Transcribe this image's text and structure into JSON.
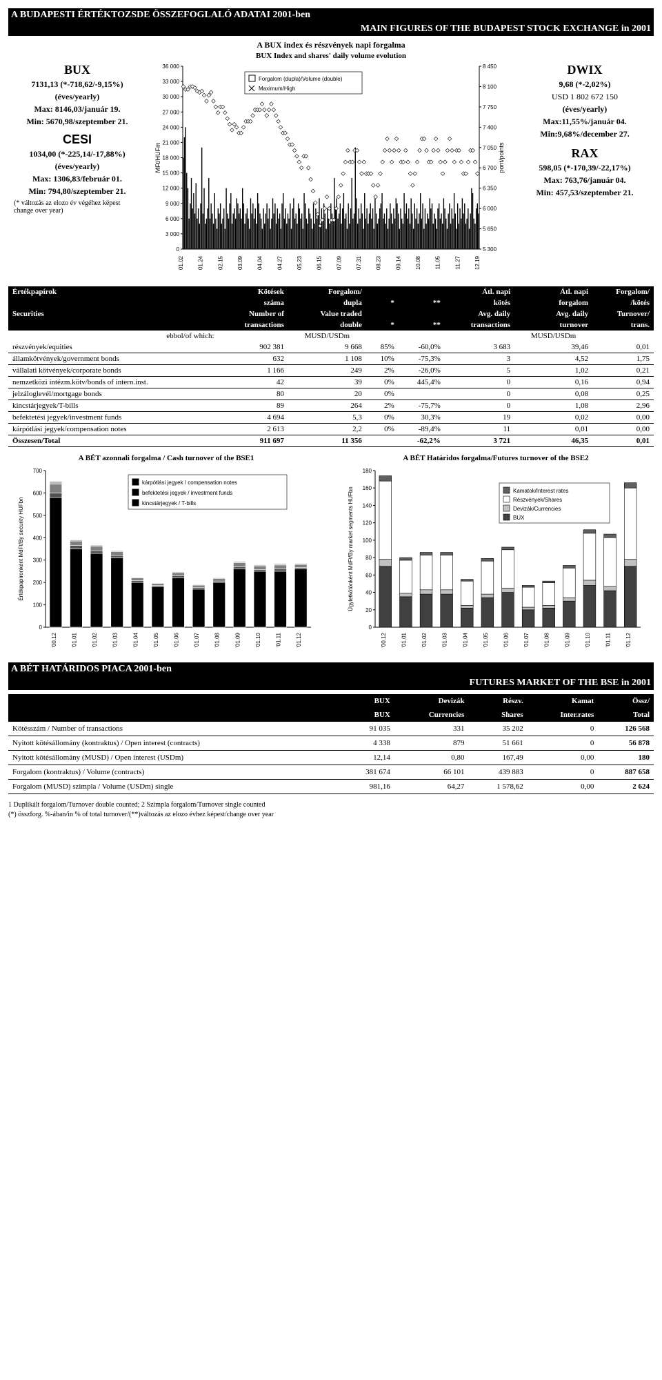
{
  "banners": {
    "top_hu": "A BUDAPESTI ÉRTÉKTOZSDE ÖSSZEFOGLALÓ ADATAI 2001-ben",
    "top_en": "MAIN FIGURES OF  THE BUDAPEST STOCK EXCHANGE in 2001",
    "futures_hu": "A BÉT HATÁRIDOS PIACA 2001-ben",
    "futures_en": "FUTURES MARKET OF THE BSE in 2001"
  },
  "chart_header": {
    "hu": "A BUX index és részvények napi forgalma",
    "en": "BUX Index and shares' daily volume evolution"
  },
  "indices": {
    "bux": {
      "name": "BUX",
      "val": "7131,13 (*-718,62/-9,15%)",
      "yearly": "(éves/yearly)",
      "max": "Max: 8146,03/január 19.",
      "min": "Min: 5670,98/szeptember 21."
    },
    "cesi": {
      "name": "CESI",
      "val": "1034,00 (*-225,14/-17,88%)",
      "yearly": "(éves/yearly)",
      "max": "Max: 1306,83/február 01.",
      "min": "Min: 794,80/szeptember 21."
    },
    "dwix": {
      "name": "DWIX",
      "val": "9,68 (*-2,02%)",
      "usd": "USD 1 802 672 150",
      "yearly": "(éves/yearly)",
      "max": "Max:11,55%/január 04.",
      "min": "Min:9,68%/december 27."
    },
    "rax": {
      "name": "RAX",
      "val": "598,05 (*-170,39/-22,17%)",
      "max": "Max: 763,76/január 04.",
      "min": "Min: 457,53/szeptember 21."
    },
    "change_note": "(* változás az elozo év végéhez képest\nchange over year)"
  },
  "main_chart": {
    "type": "bar+line",
    "y1_label": "MFt/HUFm",
    "y2_label": "pont/points",
    "y1_ticks": [
      0,
      3000,
      6000,
      9000,
      12000,
      15000,
      18000,
      21000,
      24000,
      27000,
      30000,
      33000,
      36000
    ],
    "y2_ticks": [
      5300,
      5650,
      6000,
      6350,
      6700,
      7050,
      7400,
      7750,
      8100,
      8450
    ],
    "x_labels": [
      "01.02",
      "01.24",
      "02.15",
      "03.09",
      "04.04",
      "04.27",
      "05.23",
      "06.15",
      "07.09",
      "07.31",
      "08.23",
      "09.14",
      "10.08",
      "11.05",
      "11.27",
      "12.19"
    ],
    "legend": {
      "l1": "Forgalom (dupla)/Volume (double)",
      "l2": "Maximum/High"
    },
    "volume_values": [
      18000,
      22000,
      24000,
      15000,
      12000,
      6000,
      9000,
      14000,
      8000,
      11000,
      7000,
      13000,
      6000,
      8000,
      5000,
      9000,
      20000,
      7000,
      12000,
      5000,
      6000,
      8000,
      14000,
      6000,
      9000,
      7000,
      5000,
      11000,
      6000,
      4000,
      8000,
      7000,
      9000,
      5000,
      6000,
      8000,
      4000,
      12000,
      7000,
      6000,
      9000,
      11000,
      5000,
      7000,
      8000,
      6000,
      10000,
      9000,
      7000,
      8000,
      6000,
      12000,
      9000,
      5000,
      7000,
      8000,
      6000,
      4000,
      10000,
      7000,
      9000,
      6000,
      8000,
      5000,
      11000,
      9000,
      7000,
      6000,
      4000,
      8000,
      5000,
      7000,
      9000,
      6000,
      8000,
      4000,
      6000,
      10000,
      7000,
      9000,
      5000,
      8000,
      6000,
      7000,
      4000,
      9000,
      11000,
      6000,
      8000,
      5000,
      7000,
      6000,
      9000,
      4000,
      8000,
      10000,
      6000,
      7000,
      5000,
      9000,
      8000,
      6000,
      7000,
      4000,
      11000,
      9000,
      6000,
      5000,
      8000,
      7000,
      6000,
      4000,
      9000,
      5000,
      8000,
      6000,
      7000,
      10000,
      5000,
      8000,
      6000,
      9000,
      7000,
      4000,
      8000,
      6000,
      5000,
      9000,
      7000,
      6000,
      14000,
      8000,
      10000,
      6000,
      7000,
      9000,
      5000,
      8000,
      11000,
      6000,
      7000,
      4000,
      9000,
      5000,
      8000,
      14000,
      6000,
      7000,
      20000,
      10000,
      5000,
      8000,
      6000,
      9000,
      7000,
      4000,
      11000,
      6000,
      8000,
      5000,
      7000,
      9000,
      6000,
      8000,
      4000,
      10000,
      7000,
      5000,
      6000,
      8000,
      9000,
      11000,
      6000,
      7000,
      5000,
      8000,
      4000,
      6000,
      9000,
      7000,
      5000,
      8000,
      6000,
      10000,
      9000,
      7000,
      4000,
      8000,
      6000,
      5000,
      11000,
      7000,
      9000,
      6000,
      8000,
      5000,
      10000,
      7000,
      4000,
      9000,
      6000,
      8000,
      5000,
      7000,
      11000,
      6000,
      9000,
      4000,
      8000,
      5000,
      7000,
      6000,
      10000,
      8000,
      9000,
      5000,
      7000,
      6000,
      4000,
      8000,
      9000,
      6000,
      7000,
      5000,
      10000,
      8000,
      6000,
      4000,
      7000,
      9000,
      5000,
      8000,
      6000,
      11000,
      7000,
      4000,
      9000,
      5000,
      8000,
      6000,
      10000,
      7000,
      9000,
      5000,
      6000,
      8000,
      4000,
      7000,
      12000,
      11000,
      6000,
      5000,
      8000,
      9000,
      7000
    ],
    "index_values": [
      8100,
      8150,
      8050,
      8100,
      8050,
      8000,
      8100,
      8150,
      8100,
      8050,
      8080,
      8100,
      8020,
      8050,
      8000,
      7980,
      8020,
      8000,
      7950,
      7900,
      7850,
      7900,
      7950,
      7980,
      8000,
      7900,
      7850,
      7800,
      7750,
      7700,
      7650,
      7700,
      7750,
      7800,
      7750,
      7700,
      7650,
      7600,
      7550,
      7500,
      7450,
      7400,
      7350,
      7400,
      7450,
      7500,
      7400,
      7350,
      7300,
      7250,
      7300,
      7350,
      7400,
      7450,
      7500,
      7550,
      7500,
      7450,
      7500,
      7550,
      7600,
      7650,
      7700,
      7750,
      7700,
      7650,
      7700,
      7750,
      7800,
      7750,
      7700,
      7650,
      7600,
      7650,
      7700,
      7750,
      7800,
      7750,
      7700,
      7650,
      7600,
      7550,
      7500,
      7450,
      7400,
      7350,
      7300,
      7350,
      7300,
      7250,
      7200,
      7150,
      7100,
      7150,
      7100,
      7050,
      7000,
      6950,
      6900,
      6850,
      6800,
      6750,
      6700,
      6800,
      6900,
      7000,
      6900,
      6800,
      6700,
      6600,
      6500,
      6400,
      6300,
      6200,
      6100,
      6000,
      5900,
      5800,
      5700,
      5650,
      5800,
      5900,
      6000,
      6100,
      6200,
      6100,
      6000,
      5900,
      5800,
      5700,
      5800,
      5900,
      6000,
      6100,
      6200,
      6300,
      6400,
      6500,
      6600,
      6700,
      6800,
      6900,
      7000,
      6900,
      6800,
      6700,
      6800,
      6900,
      7000,
      7100,
      7000,
      6900,
      6800,
      6700,
      6600,
      6700,
      6800,
      6700,
      6600,
      6500,
      6600,
      6700,
      6600,
      6500,
      6400,
      6300,
      6200,
      6300,
      6400,
      6500,
      6600,
      6700,
      6800,
      6900,
      7000,
      7100,
      7200,
      7100,
      7000,
      6900,
      6800,
      6900,
      7000,
      7100,
      7200,
      7100,
      7000,
      6900,
      6800,
      6700,
      6800,
      6900,
      7000,
      6900,
      6800,
      6700,
      6600,
      6500,
      6400,
      6500,
      6600,
      6700,
      6800,
      6900,
      7000,
      7100,
      7200,
      7300,
      7200,
      7100,
      7000,
      6900,
      6800,
      6700,
      6800,
      6900,
      7000,
      7100,
      7200,
      7100,
      7000,
      6900,
      6800,
      6700,
      6600,
      6700,
      6800,
      6900,
      7000,
      7100,
      7200,
      7100,
      7000,
      6900,
      6800,
      6900,
      7000,
      7100,
      7000,
      6900,
      6800,
      6700,
      6600,
      6500,
      6600,
      6700,
      6800,
      6900,
      7000,
      7100,
      7000,
      6900,
      6800,
      6700,
      6600,
      6700
    ],
    "colors": {
      "bar": "#000000",
      "line": "#000000",
      "grid": "#888888",
      "bg": "#ffffff"
    }
  },
  "sec_table": {
    "hdr_hu": [
      "Értékpapírok",
      "Kötések",
      "Forgalom/",
      "",
      "",
      "Átl. napi",
      "Átl. napi",
      "Forgalom/"
    ],
    "hdr_hu2": [
      "",
      "száma",
      "dupla",
      "*",
      "**",
      "kötés",
      "forgalom",
      "/kötés"
    ],
    "hdr_en": [
      "Securities",
      "Number of",
      "Value traded",
      "",
      "",
      "Avg. daily",
      "Avg. daily",
      "Turnover/"
    ],
    "hdr_en2": [
      "",
      "transactions",
      "double",
      "*",
      "**",
      "transactions",
      "turnover",
      "trans."
    ],
    "unit_row": [
      "ebbol/of which:",
      "",
      "MUSD/USDm",
      "",
      "",
      "",
      "MUSD/USDm",
      ""
    ],
    "rows": [
      [
        "részvények/equities",
        "902 381",
        "9 668",
        "85%",
        "-60,0%",
        "3 683",
        "39,46",
        "0,01"
      ],
      [
        "államkötvények/government bonds",
        "632",
        "1 108",
        "10%",
        "-75,3%",
        "3",
        "4,52",
        "1,75"
      ],
      [
        "vállalati kötvények/corporate bonds",
        "1 166",
        "249",
        "2%",
        "-26,0%",
        "5",
        "1,02",
        "0,21"
      ],
      [
        "nemzetközi intézm.kötv/bonds of intern.inst.",
        "42",
        "39",
        "0%",
        "445,4%",
        "0",
        "0,16",
        "0,94"
      ],
      [
        "jelzáloglevél/mortgage bonds",
        "80",
        "20",
        "0%",
        "",
        "0",
        "0,08",
        "0,25"
      ],
      [
        "kincstárjegyek/T-bills",
        "89",
        "264",
        "2%",
        "-75,7%",
        "0",
        "1,08",
        "2,96"
      ],
      [
        "befektetési jegyek/investment funds",
        "4 694",
        "5,3",
        "0%",
        "30,3%",
        "19",
        "0,02",
        "0,00"
      ],
      [
        "kárpótlási jegyek/compensation notes",
        "2 613",
        "2,2",
        "0%",
        "-89,4%",
        "11",
        "0,01",
        "0,00"
      ]
    ],
    "total": [
      "Összesen/Total",
      "911 697",
      "11 356",
      "",
      "-62,2%",
      "3 721",
      "46,35",
      "0,01"
    ]
  },
  "cash_chart": {
    "title": "A BÉT azonnali forgalma / Cash turnover of the BSE1",
    "y_label": "Értékpapíronként MdFt/By security HUFbn",
    "y_ticks": [
      0,
      100,
      200,
      300,
      400,
      500,
      600,
      700
    ],
    "ymax": 700,
    "x_labels": [
      "'00.12",
      "'01.01",
      "'01.02",
      "'01.03",
      "'01.04",
      "'01.05",
      "'01.06",
      "'01.07",
      "'01.08",
      "'01.09",
      "'01.10",
      "'01.11",
      "'01.12"
    ],
    "legend": [
      "kárpótlási jegyek / compensation notes",
      "befektetési jegyek / investment funds",
      "kincstárjegyek / T-bills"
    ],
    "legend_colors": [
      "#000000",
      "#000000",
      "#000000"
    ],
    "legend_patterns": [
      "solid",
      "solid",
      "solid"
    ],
    "series": {
      "equities": [
        580,
        350,
        330,
        310,
        200,
        180,
        220,
        170,
        200,
        260,
        250,
        250,
        260
      ],
      "govbonds": [
        20,
        15,
        12,
        10,
        8,
        6,
        10,
        8,
        6,
        10,
        8,
        10,
        6
      ],
      "tbills": [
        40,
        20,
        20,
        18,
        12,
        10,
        14,
        10,
        12,
        18,
        16,
        18,
        14
      ],
      "corpbonds": [
        10,
        5,
        5,
        4,
        3,
        2,
        4,
        3,
        3,
        5,
        4,
        5,
        4
      ],
      "other": [
        5,
        3,
        2,
        2,
        2,
        1,
        2,
        2,
        2,
        3,
        3,
        3,
        3
      ]
    },
    "colors": {
      "equities": "#000000",
      "govbonds": "#505050",
      "tbills": "#808080",
      "corpbonds": "#b0b0b0",
      "other": "#e0e0e0",
      "grid": "#000000"
    }
  },
  "futures_chart": {
    "title": "A BÉT Határidos forgalma/Futures turnover of the BSE2",
    "y_label": "Ügyletkötönként MdFt/By market segments HUFbn",
    "y_ticks": [
      0,
      20,
      40,
      60,
      80,
      100,
      120,
      140,
      160,
      180
    ],
    "ymax": 180,
    "x_labels": [
      "'00.12",
      "'01.01",
      "'01.02",
      "'01.03",
      "'01.04",
      "'01.05",
      "'01.06",
      "'01.07",
      "'01.08",
      "'01.09",
      "'01.10",
      "'01.11",
      "'01.12"
    ],
    "legend": [
      "Kamatok/Interest rates",
      "Részvények/Shares",
      "Devizák/Currencies",
      "BUX"
    ],
    "legend_colors": [
      "#606060",
      "#ffffff",
      "#c0c0c0",
      "#404040"
    ],
    "series": {
      "bux": [
        70,
        35,
        38,
        38,
        22,
        34,
        40,
        20,
        22,
        30,
        48,
        42,
        70
      ],
      "currencies": [
        8,
        4,
        5,
        5,
        3,
        4,
        5,
        3,
        3,
        4,
        6,
        5,
        8
      ],
      "shares": [
        90,
        38,
        40,
        40,
        28,
        38,
        44,
        23,
        26,
        34,
        54,
        56,
        82
      ],
      "interest": [
        6,
        3,
        3,
        3,
        2,
        3,
        3,
        2,
        2,
        3,
        4,
        4,
        6
      ]
    },
    "colors": {
      "bux": "#404040",
      "currencies": "#c0c0c0",
      "shares": "#ffffff",
      "interest": "#606060",
      "grid": "#000000",
      "border": "#000000"
    }
  },
  "futures_table": {
    "hdr1": [
      "",
      "BUX",
      "Devizák",
      "Részv.",
      "Kamat",
      "Össz/"
    ],
    "hdr2": [
      "",
      "BUX",
      "Currencies",
      "Shares",
      "Inter.rates",
      "Total"
    ],
    "rows": [
      [
        "Kötésszám / Number of transactions",
        "91 035",
        "331",
        "35 202",
        "0",
        "126 568"
      ],
      [
        "Nyitott kötésállomány (kontraktus) / Open interest (contracts)",
        "4 338",
        "879",
        "51 661",
        "0",
        "56 878"
      ],
      [
        "Nyitott kötésállomány (MUSD) / Open interest (USDm)",
        "12,14",
        "0,80",
        "167,49",
        "0,00",
        "180"
      ],
      [
        "Forgalom (kontraktus) / Volume (contracts)",
        "381 674",
        "66 101",
        "439 883",
        "0",
        "887 658"
      ],
      [
        "Forgalom (MUSD) szimpla / Volume (USDm) single",
        "981,16",
        "64,27",
        "1 578,62",
        "0,00",
        "2 624"
      ]
    ]
  },
  "footnotes": {
    "f1": "1 Duplikált forgalom/Turnover double counted; 2 Szimpla forgalom/Turnover single counted",
    "f2": "(*) összforg. %-ában/in % of total turnover/(**)változás az elozo évhez képest/change over year"
  }
}
